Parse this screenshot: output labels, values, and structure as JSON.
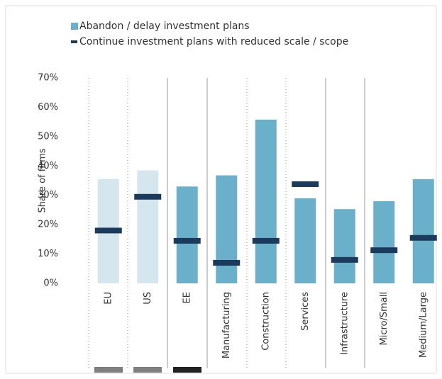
{
  "chart_data": {
    "type": "bar",
    "y_label": "Share of firms",
    "categories": [
      "EU",
      "US",
      "EE",
      "Manufacturing",
      "Construction",
      "Services",
      "Infrastructure",
      "Micro/Small",
      "Medium/Large"
    ],
    "series": [
      {
        "name": "Abandon / delay investment plans",
        "color": "#6ab0cb",
        "colors": [
          "#d5e6ee",
          "#d5e6ee",
          "#6ab0cb",
          "#6ab0cb",
          "#6ab0cb",
          "#6ab0cb",
          "#6ab0cb",
          "#6ab0cb",
          "#6ab0cb"
        ],
        "values": [
          35.5,
          38.5,
          33,
          36.8,
          55.8,
          29,
          25.3,
          28,
          35.5
        ]
      },
      {
        "name": "Continue investment plans with reduced scale / scope",
        "color": "#1b3a5c",
        "marker": "dash",
        "values": [
          18,
          29.5,
          14.5,
          7,
          14.5,
          33.8,
          8,
          11.3,
          15.5
        ]
      }
    ],
    "ylim": [
      0,
      70
    ],
    "yticks": [
      {
        "value": 0,
        "label": "0%"
      },
      {
        "value": 10,
        "label": "10%"
      },
      {
        "value": 20,
        "label": "20%"
      },
      {
        "value": 30,
        "label": "30%"
      },
      {
        "value": 40,
        "label": "40%"
      },
      {
        "value": 50,
        "label": "50%"
      },
      {
        "value": 60,
        "label": "60%"
      },
      {
        "value": 70,
        "label": "70%"
      }
    ],
    "legend": "top-left"
  }
}
